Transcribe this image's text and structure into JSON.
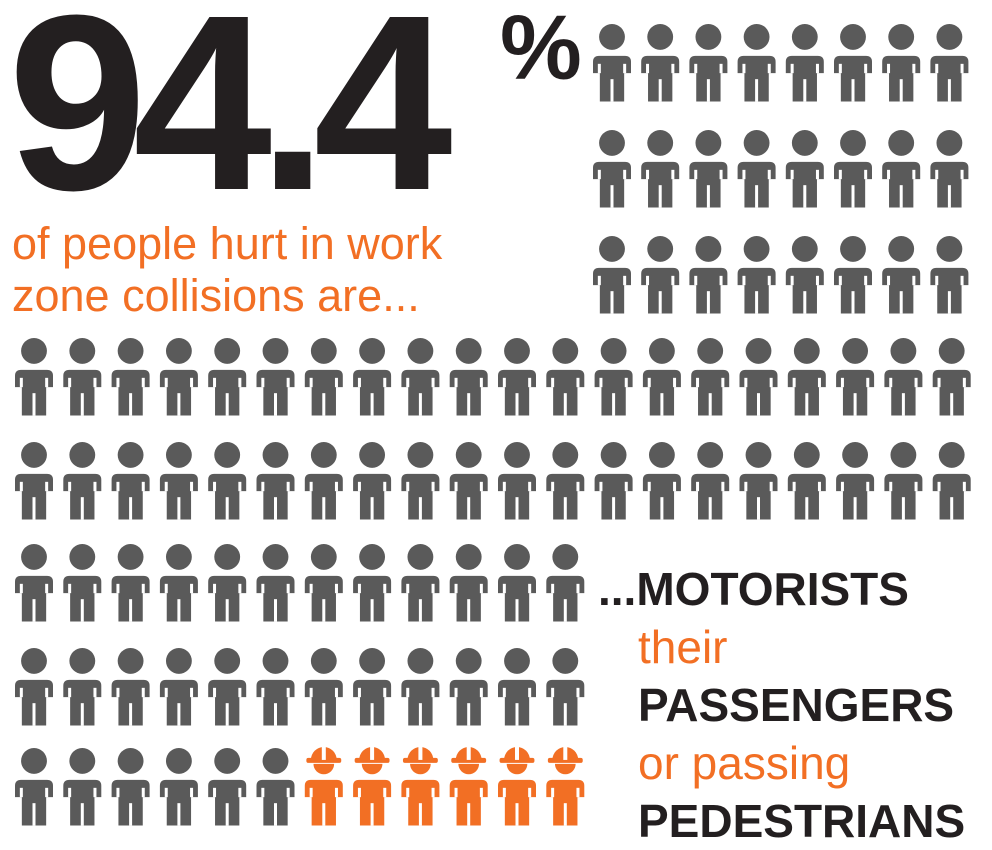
{
  "headline": {
    "number": "94.4",
    "percent_sign": "%",
    "subtitle_line1": "of people hurt in work",
    "subtitle_line2": "zone collisions are..."
  },
  "categories": {
    "line1": "...MOTORISTS",
    "line2": "their",
    "line3": "PASSENGERS",
    "line4": "or passing",
    "line5": "PEDESTRIANS"
  },
  "colors": {
    "person": "#5a5a5a",
    "worker": "#f26f24",
    "headline": "#231f20",
    "accent": "#f26f24"
  },
  "icons": {
    "person": "person-icon",
    "worker": "worker-hardhat-icon"
  }
}
